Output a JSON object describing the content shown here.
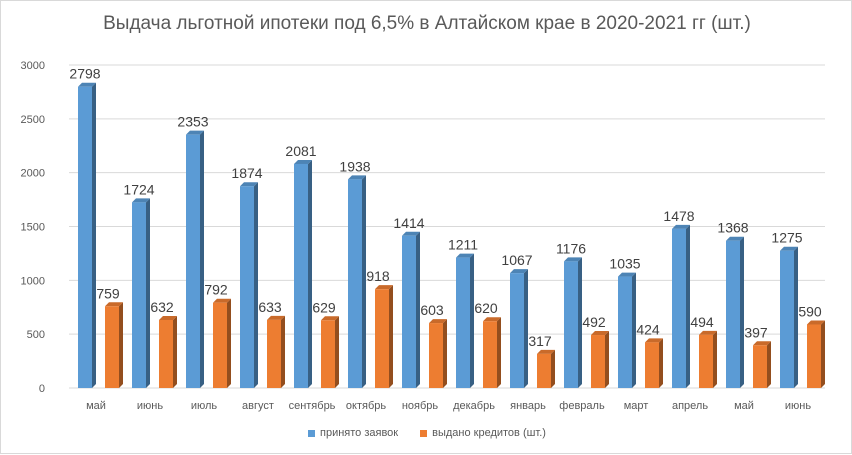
{
  "chart_data": {
    "type": "bar",
    "title": "Выдача льготной ипотеки под 6,5% в Алтайском крае в 2020-2021 гг (шт.)",
    "categories": [
      "май",
      "июнь",
      "июль",
      "август",
      "сентябрь",
      "октябрь",
      "ноябрь",
      "декабрь",
      "январь",
      "февраль",
      "март",
      "апрель",
      "май",
      "июнь"
    ],
    "series": [
      {
        "name": "принято заявок",
        "color": "#5b9bd5",
        "values": [
          2798,
          1724,
          2353,
          1874,
          2081,
          1938,
          1414,
          1211,
          1067,
          1176,
          1035,
          1478,
          1368,
          1275
        ]
      },
      {
        "name": "выдано кредитов (шт.)",
        "color": "#ed7d31",
        "values": [
          759,
          632,
          792,
          633,
          629,
          918,
          603,
          620,
          317,
          492,
          424,
          494,
          397,
          590
        ]
      }
    ],
    "ylim": [
      0,
      3000
    ],
    "yticks": [
      0,
      500,
      1000,
      1500,
      2000,
      2500,
      3000
    ],
    "grid": true,
    "legend_position": "bottom"
  }
}
